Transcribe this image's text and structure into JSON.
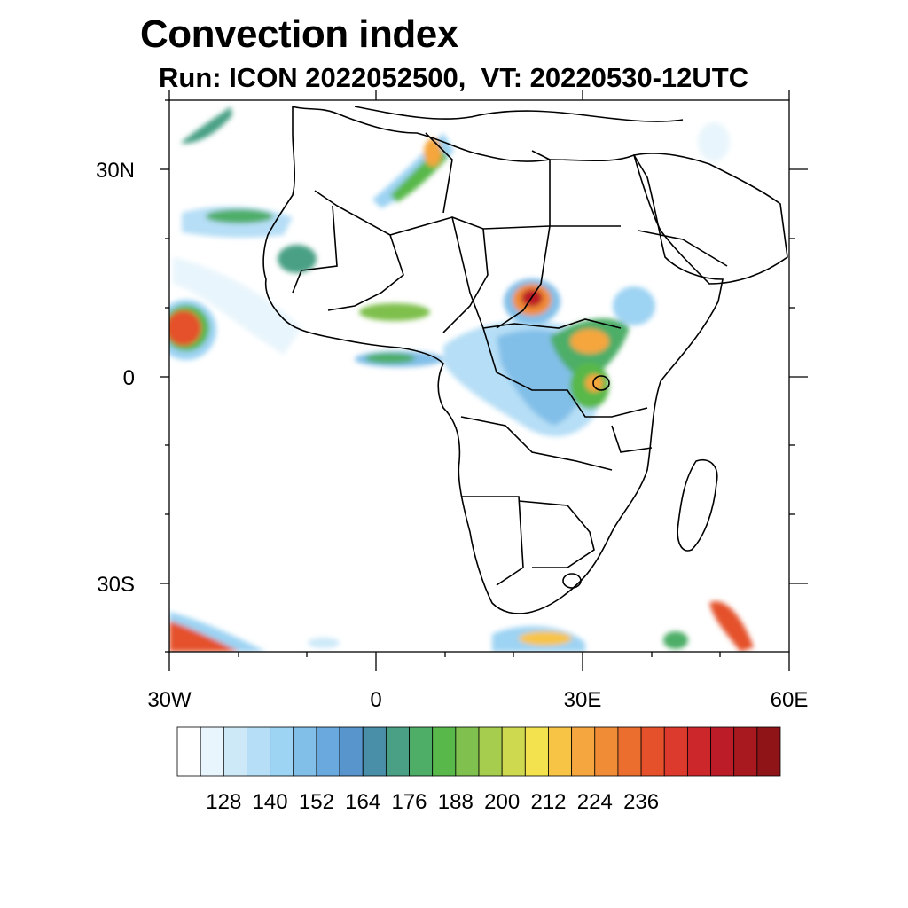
{
  "header": {
    "title": "Convection index",
    "subtitle": "Run: ICON 2022052500,  VT: 20220530-12UTC"
  },
  "map": {
    "lon_range": [
      -30,
      60
    ],
    "lat_range": [
      -40,
      40
    ],
    "lat_labels": [
      "30N",
      "0",
      "30S"
    ],
    "lon_labels": [
      "30W",
      "0",
      "30E",
      "60E"
    ]
  },
  "colorbar": {
    "colors": [
      "#ffffff",
      "#e8f5fc",
      "#cde9f8",
      "#b6def6",
      "#9dd3f3",
      "#82bfe8",
      "#6aa9de",
      "#5795cc",
      "#4a8fa8",
      "#4aa085",
      "#4eae68",
      "#58b84a",
      "#7fc04e",
      "#a6cd4e",
      "#cfd950",
      "#f3e24e",
      "#f8c445",
      "#f5a63e",
      "#f08c36",
      "#ec6e2e",
      "#e4512a",
      "#dc3a2c",
      "#cc282c",
      "#bb1c28",
      "#a8181f",
      "#8f1418"
    ],
    "labels": [
      "128",
      "140",
      "152",
      "164",
      "176",
      "188",
      "200",
      "212",
      "224",
      "236"
    ]
  }
}
